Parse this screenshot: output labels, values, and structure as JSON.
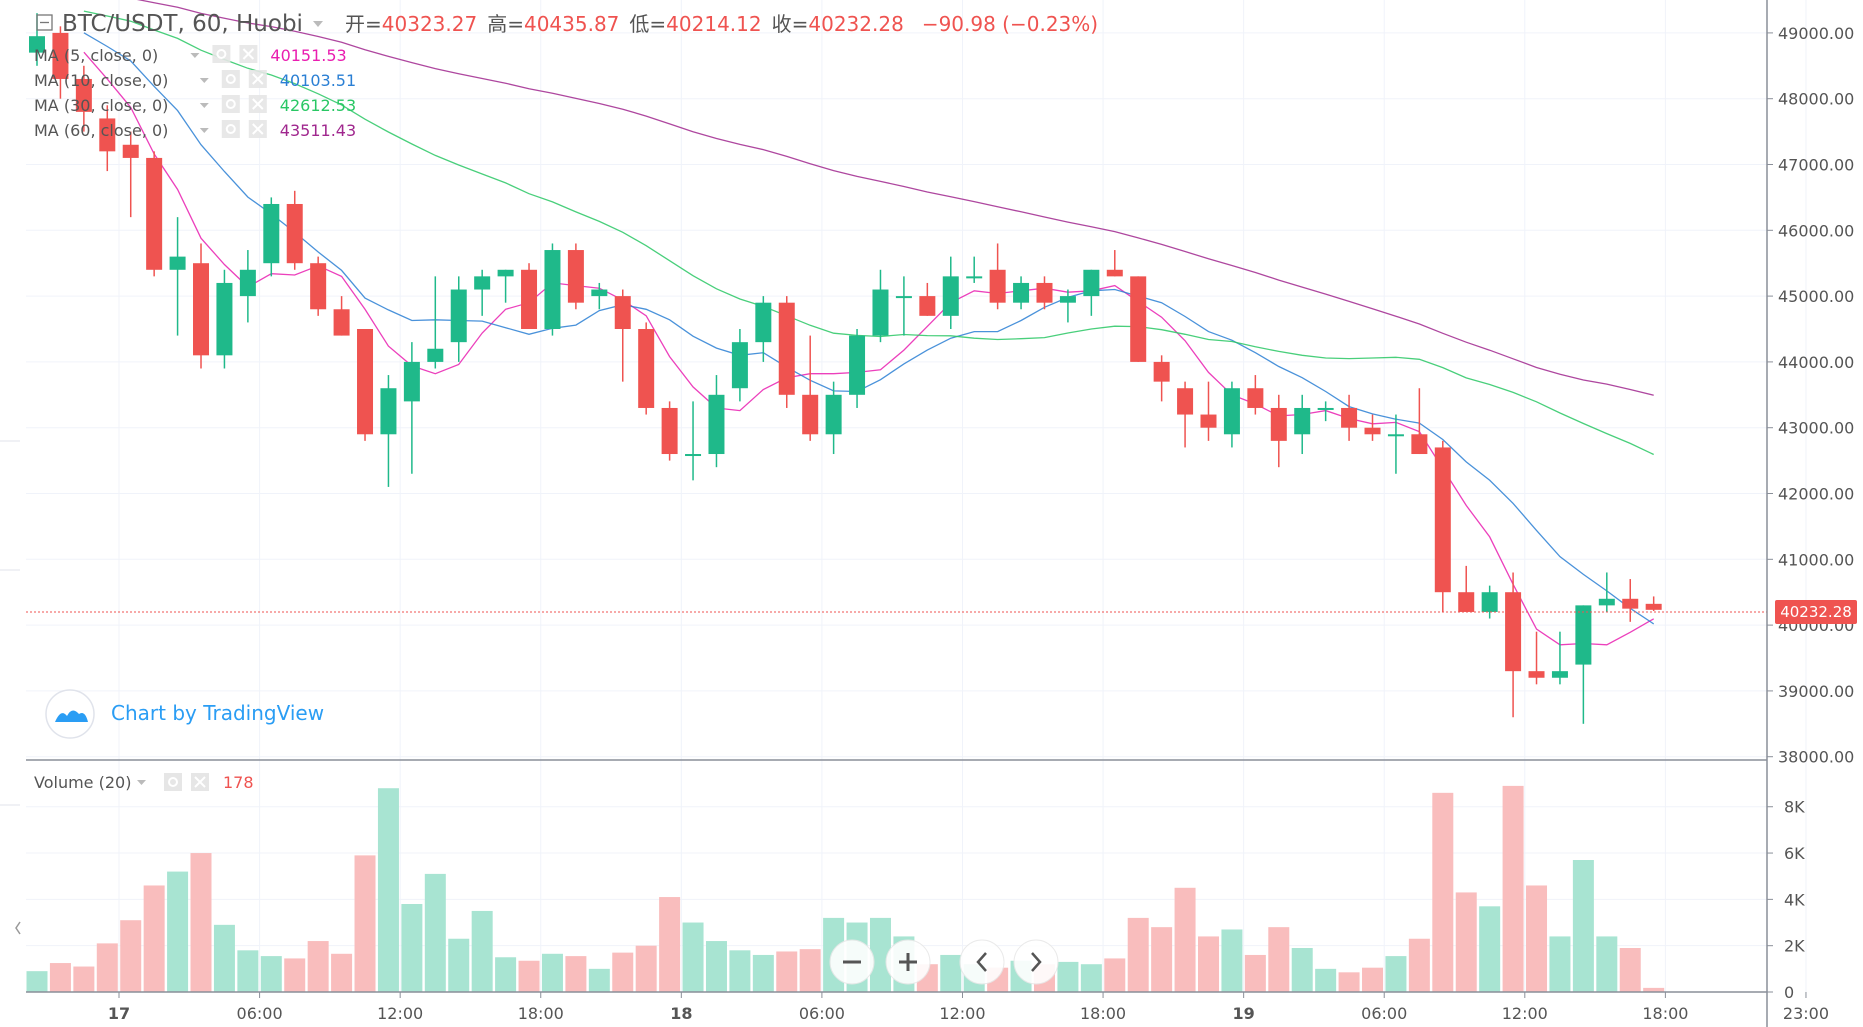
{
  "header": {
    "symbol": "BTC/USDT, 60, Huobi",
    "open_label": "开=",
    "open_value": "40323.27",
    "high_label": "高=",
    "high_value": "40435.87",
    "low_label": "低=",
    "low_value": "40214.12",
    "close_label": "收=",
    "close_value": "40232.28",
    "change": "−90.98 (−0.23%)"
  },
  "indicators": [
    {
      "label": "MA (5, close, 0)",
      "value": "40151.53",
      "color": "#e91eb0"
    },
    {
      "label": "MA (10, close, 0)",
      "value": "40103.51",
      "color": "#2a7fd4"
    },
    {
      "label": "MA (30, close, 0)",
      "value": "42612.53",
      "color": "#29c764"
    },
    {
      "label": "MA (60, close, 0)",
      "value": "43511.43",
      "color": "#a0278e"
    }
  ],
  "volume_indicator": {
    "label": "Volume (20)",
    "value": "178"
  },
  "watermark": "Chart by TradingView",
  "price_tag": "40232.28",
  "colors": {
    "up": "#26a69a",
    "up_fill": "#1fb98a",
    "down": "#ef5350",
    "vol_up": "#a8e4d2",
    "vol_down": "#f9bdbd",
    "grid": "#f0f3fa",
    "axis_text": "#555555",
    "price_line": "#ef5350"
  },
  "chart_data": {
    "type": "candlestick",
    "price_axis": {
      "ticks": [
        38000,
        39000,
        40000,
        41000,
        42000,
        43000,
        44000,
        45000,
        46000,
        47000,
        48000,
        49000
      ],
      "tick_labels": [
        "38000.00",
        "39000.00",
        "40000.00",
        "41000.00",
        "42000.00",
        "43000.00",
        "44000.00",
        "45000.00",
        "46000.00",
        "47000.00",
        "48000.00",
        "49000.00"
      ],
      "range": [
        37950,
        49500
      ]
    },
    "volume_axis": {
      "ticks": [
        0,
        2000,
        4000,
        6000,
        8000
      ],
      "tick_labels": [
        "0",
        "2K",
        "4K",
        "6K",
        "8K"
      ],
      "range": [
        0,
        9500
      ]
    },
    "time_axis": {
      "labels": [
        {
          "bar": 3.5,
          "text": "17",
          "bold": true
        },
        {
          "bar": 9.5,
          "text": "06:00",
          "bold": false
        },
        {
          "bar": 15.5,
          "text": "12:00",
          "bold": false
        },
        {
          "bar": 21.5,
          "text": "18:00",
          "bold": false
        },
        {
          "bar": 27.5,
          "text": "18",
          "bold": true
        },
        {
          "bar": 33.5,
          "text": "06:00",
          "bold": false
        },
        {
          "bar": 39.5,
          "text": "12:00",
          "bold": false
        },
        {
          "bar": 45.5,
          "text": "18:00",
          "bold": false
        },
        {
          "bar": 51.5,
          "text": "19",
          "bold": true
        },
        {
          "bar": 57.5,
          "text": "06:00",
          "bold": false
        },
        {
          "bar": 63.5,
          "text": "12:00",
          "bold": false
        },
        {
          "bar": 69.5,
          "text": "18:00",
          "bold": false
        },
        {
          "bar": 75.5,
          "text": "23:00",
          "bold": false
        }
      ]
    },
    "candles": [
      {
        "o": 48700,
        "h": 49300,
        "l": 48500,
        "c": 48950,
        "v": 900
      },
      {
        "o": 49000,
        "h": 49100,
        "l": 48000,
        "c": 48300,
        "v": 1250
      },
      {
        "o": 48300,
        "h": 48500,
        "l": 47500,
        "c": 47800,
        "v": 1100
      },
      {
        "o": 47700,
        "h": 47900,
        "l": 46900,
        "c": 47200,
        "v": 2100
      },
      {
        "o": 47300,
        "h": 47500,
        "l": 46200,
        "c": 47100,
        "v": 3100
      },
      {
        "o": 47100,
        "h": 47200,
        "l": 45300,
        "c": 45400,
        "v": 4600
      },
      {
        "o": 45400,
        "h": 46200,
        "l": 44400,
        "c": 45600,
        "v": 5200
      },
      {
        "o": 45500,
        "h": 45800,
        "l": 43900,
        "c": 44100,
        "v": 6000
      },
      {
        "o": 44100,
        "h": 45400,
        "l": 43900,
        "c": 45200,
        "v": 2900
      },
      {
        "o": 45000,
        "h": 45700,
        "l": 44600,
        "c": 45400,
        "v": 1800
      },
      {
        "o": 45500,
        "h": 46500,
        "l": 45300,
        "c": 46400,
        "v": 1550
      },
      {
        "o": 46400,
        "h": 46600,
        "l": 45400,
        "c": 45500,
        "v": 1450
      },
      {
        "o": 45500,
        "h": 45600,
        "l": 44700,
        "c": 44800,
        "v": 2200
      },
      {
        "o": 44800,
        "h": 45000,
        "l": 44400,
        "c": 44400,
        "v": 1650
      },
      {
        "o": 44500,
        "h": 44500,
        "l": 42800,
        "c": 42900,
        "v": 5900
      },
      {
        "o": 42900,
        "h": 43800,
        "l": 42100,
        "c": 43600,
        "v": 8800
      },
      {
        "o": 43400,
        "h": 44300,
        "l": 42300,
        "c": 44000,
        "v": 3800
      },
      {
        "o": 44000,
        "h": 45300,
        "l": 43900,
        "c": 44200,
        "v": 5100
      },
      {
        "o": 44300,
        "h": 45300,
        "l": 44000,
        "c": 45100,
        "v": 2300
      },
      {
        "o": 45100,
        "h": 45400,
        "l": 44700,
        "c": 45300,
        "v": 3500
      },
      {
        "o": 45300,
        "h": 45400,
        "l": 44900,
        "c": 45400,
        "v": 1500
      },
      {
        "o": 45400,
        "h": 45500,
        "l": 44500,
        "c": 44500,
        "v": 1350
      },
      {
        "o": 44500,
        "h": 45800,
        "l": 44400,
        "c": 45700,
        "v": 1650
      },
      {
        "o": 45700,
        "h": 45800,
        "l": 44800,
        "c": 44900,
        "v": 1550
      },
      {
        "o": 45000,
        "h": 45200,
        "l": 44800,
        "c": 45100,
        "v": 1000
      },
      {
        "o": 45000,
        "h": 45100,
        "l": 43700,
        "c": 44500,
        "v": 1700
      },
      {
        "o": 44500,
        "h": 44600,
        "l": 43200,
        "c": 43300,
        "v": 2000
      },
      {
        "o": 43300,
        "h": 43400,
        "l": 42500,
        "c": 42600,
        "v": 4100
      },
      {
        "o": 42600,
        "h": 43400,
        "l": 42200,
        "c": 42600,
        "v": 3000
      },
      {
        "o": 42600,
        "h": 43800,
        "l": 42400,
        "c": 43500,
        "v": 2200
      },
      {
        "o": 43600,
        "h": 44500,
        "l": 43400,
        "c": 44300,
        "v": 1800
      },
      {
        "o": 44300,
        "h": 45000,
        "l": 44000,
        "c": 44900,
        "v": 1600
      },
      {
        "o": 44900,
        "h": 45000,
        "l": 43300,
        "c": 43500,
        "v": 1750
      },
      {
        "o": 43500,
        "h": 44400,
        "l": 42800,
        "c": 42900,
        "v": 1850
      },
      {
        "o": 42900,
        "h": 43700,
        "l": 42600,
        "c": 43500,
        "v": 3200
      },
      {
        "o": 43500,
        "h": 44500,
        "l": 43300,
        "c": 44400,
        "v": 3000
      },
      {
        "o": 44400,
        "h": 45400,
        "l": 44300,
        "c": 45100,
        "v": 3200
      },
      {
        "o": 45000,
        "h": 45300,
        "l": 44400,
        "c": 45000,
        "v": 2400
      },
      {
        "o": 45000,
        "h": 45200,
        "l": 44700,
        "c": 44700,
        "v": 1200
      },
      {
        "o": 44700,
        "h": 45600,
        "l": 44500,
        "c": 45300,
        "v": 1600
      },
      {
        "o": 45300,
        "h": 45600,
        "l": 45200,
        "c": 45300,
        "v": 1200
      },
      {
        "o": 45400,
        "h": 45800,
        "l": 44800,
        "c": 44900,
        "v": 1050
      },
      {
        "o": 44900,
        "h": 45300,
        "l": 44800,
        "c": 45200,
        "v": 1350
      },
      {
        "o": 45200,
        "h": 45300,
        "l": 44800,
        "c": 44900,
        "v": 1200
      },
      {
        "o": 44900,
        "h": 45100,
        "l": 44600,
        "c": 45000,
        "v": 1300
      },
      {
        "o": 45000,
        "h": 45400,
        "l": 44700,
        "c": 45400,
        "v": 1200
      },
      {
        "o": 45400,
        "h": 45700,
        "l": 45300,
        "c": 45300,
        "v": 1450
      },
      {
        "o": 45300,
        "h": 45300,
        "l": 44000,
        "c": 44000,
        "v": 3200
      },
      {
        "o": 44000,
        "h": 44100,
        "l": 43400,
        "c": 43700,
        "v": 2800
      },
      {
        "o": 43600,
        "h": 43700,
        "l": 42700,
        "c": 43200,
        "v": 4500
      },
      {
        "o": 43200,
        "h": 43700,
        "l": 42800,
        "c": 43000,
        "v": 2400
      },
      {
        "o": 42900,
        "h": 43700,
        "l": 42700,
        "c": 43600,
        "v": 2700
      },
      {
        "o": 43600,
        "h": 43800,
        "l": 43200,
        "c": 43300,
        "v": 1600
      },
      {
        "o": 43300,
        "h": 43500,
        "l": 42400,
        "c": 42800,
        "v": 2800
      },
      {
        "o": 42900,
        "h": 43500,
        "l": 42600,
        "c": 43300,
        "v": 1900
      },
      {
        "o": 43300,
        "h": 43400,
        "l": 43100,
        "c": 43300,
        "v": 1000
      },
      {
        "o": 43300,
        "h": 43500,
        "l": 42800,
        "c": 43000,
        "v": 850
      },
      {
        "o": 43000,
        "h": 43200,
        "l": 42800,
        "c": 42900,
        "v": 1050
      },
      {
        "o": 42900,
        "h": 43200,
        "l": 42300,
        "c": 42900,
        "v": 1550
      },
      {
        "o": 42900,
        "h": 43600,
        "l": 42600,
        "c": 42600,
        "v": 2300
      },
      {
        "o": 42700,
        "h": 42800,
        "l": 40200,
        "c": 40500,
        "v": 8600
      },
      {
        "o": 40500,
        "h": 40900,
        "l": 40200,
        "c": 40200,
        "v": 4300
      },
      {
        "o": 40200,
        "h": 40600,
        "l": 40100,
        "c": 40500,
        "v": 3700
      },
      {
        "o": 40500,
        "h": 40800,
        "l": 38600,
        "c": 39300,
        "v": 8900
      },
      {
        "o": 39300,
        "h": 39900,
        "l": 39100,
        "c": 39200,
        "v": 4600
      },
      {
        "o": 39200,
        "h": 39900,
        "l": 39100,
        "c": 39300,
        "v": 2400
      },
      {
        "o": 39400,
        "h": 40300,
        "l": 38500,
        "c": 40300,
        "v": 5700
      },
      {
        "o": 40300,
        "h": 40800,
        "l": 40200,
        "c": 40400,
        "v": 2400
      },
      {
        "o": 40400,
        "h": 40700,
        "l": 40050,
        "c": 40250,
        "v": 1900
      },
      {
        "o": 40323.27,
        "h": 40435.87,
        "l": 40214.12,
        "c": 40232.28,
        "v": 178
      }
    ]
  }
}
